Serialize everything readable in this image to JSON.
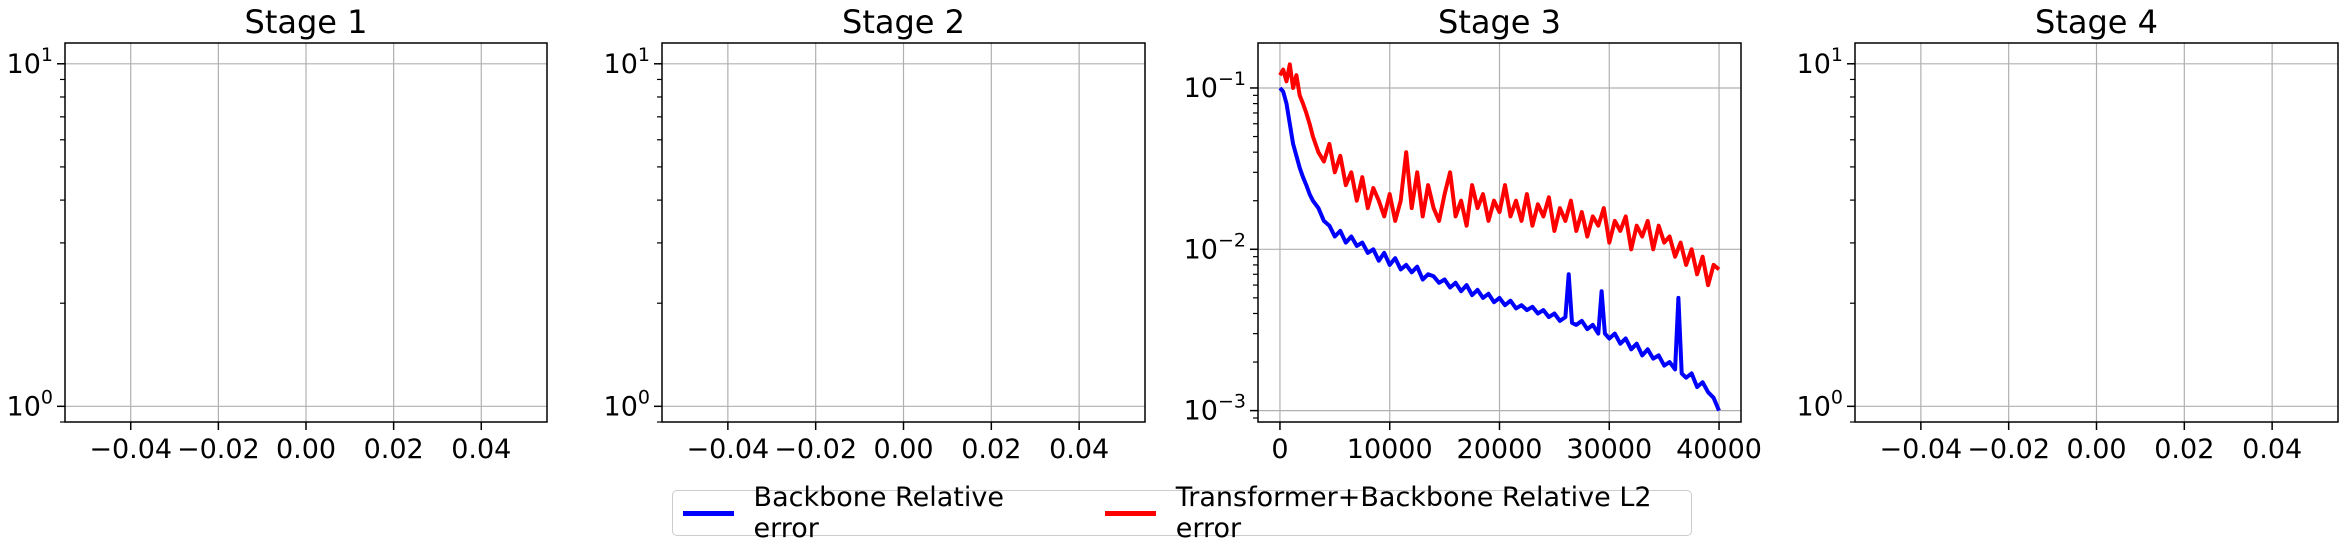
{
  "chart_data": [
    {
      "type": "line",
      "title": "Stage 1",
      "xlim": [
        -0.055,
        0.055
      ],
      "xticks": [
        "−0.04",
        "−0.02",
        "0.00",
        "0.02",
        "0.04"
      ],
      "xtick_values": [
        -0.04,
        -0.02,
        0.0,
        0.02,
        0.04
      ],
      "yscale": "log",
      "ylim": [
        0.9,
        11.5
      ],
      "yticks": [
        {
          "value": 1,
          "base": "10",
          "exp": "0"
        },
        {
          "value": 10,
          "base": "10",
          "exp": "1"
        }
      ],
      "grid": true,
      "series": []
    },
    {
      "type": "line",
      "title": "Stage 2",
      "xlim": [
        -0.055,
        0.055
      ],
      "xticks": [
        "−0.04",
        "−0.02",
        "0.00",
        "0.02",
        "0.04"
      ],
      "xtick_values": [
        -0.04,
        -0.02,
        0.0,
        0.02,
        0.04
      ],
      "yscale": "log",
      "ylim": [
        0.9,
        11.5
      ],
      "yticks": [
        {
          "value": 1,
          "base": "10",
          "exp": "0"
        },
        {
          "value": 10,
          "base": "10",
          "exp": "1"
        }
      ],
      "grid": true,
      "series": []
    },
    {
      "type": "line",
      "title": "Stage 3",
      "xlim": [
        -2000,
        42000
      ],
      "xticks": [
        "0",
        "10000",
        "20000",
        "30000",
        "40000"
      ],
      "xtick_values": [
        0,
        10000,
        20000,
        30000,
        40000
      ],
      "yscale": "log",
      "ylim": [
        0.00085,
        0.19
      ],
      "yticks": [
        {
          "value": 0.001,
          "base": "10",
          "exp": "−3"
        },
        {
          "value": 0.01,
          "base": "10",
          "exp": "−2"
        },
        {
          "value": 0.1,
          "base": "10",
          "exp": "−1"
        }
      ],
      "grid": true,
      "series": [
        {
          "name": "Backbone Relative error",
          "color": "#0000ff",
          "x": [
            0,
            300,
            600,
            900,
            1200,
            1500,
            1800,
            2100,
            2400,
            2700,
            3000,
            3500,
            4000,
            4500,
            5000,
            5500,
            6000,
            6500,
            7000,
            7500,
            8000,
            8500,
            9000,
            9500,
            10000,
            10500,
            11000,
            11500,
            12000,
            12500,
            13000,
            13500,
            14000,
            14500,
            15000,
            15500,
            16000,
            16500,
            17000,
            17500,
            18000,
            18500,
            19000,
            19500,
            20000,
            20500,
            21000,
            21500,
            22000,
            22500,
            23000,
            23500,
            24000,
            24500,
            25000,
            25500,
            26000,
            26300,
            26600,
            27000,
            27500,
            28000,
            28500,
            29000,
            29300,
            29600,
            30000,
            30500,
            31000,
            31500,
            32000,
            32500,
            33000,
            33500,
            34000,
            34500,
            35000,
            35500,
            36000,
            36300,
            36600,
            37000,
            37500,
            38000,
            38500,
            39000,
            39500,
            40000
          ],
          "y": [
            0.1,
            0.095,
            0.08,
            0.06,
            0.045,
            0.038,
            0.032,
            0.028,
            0.025,
            0.022,
            0.02,
            0.018,
            0.015,
            0.014,
            0.012,
            0.013,
            0.011,
            0.012,
            0.0105,
            0.011,
            0.0095,
            0.01,
            0.0085,
            0.0095,
            0.008,
            0.0088,
            0.0075,
            0.008,
            0.0072,
            0.0078,
            0.0065,
            0.007,
            0.0068,
            0.0062,
            0.0065,
            0.0058,
            0.0062,
            0.0055,
            0.006,
            0.0052,
            0.0056,
            0.005,
            0.0053,
            0.0047,
            0.005,
            0.0045,
            0.0048,
            0.0043,
            0.0045,
            0.0042,
            0.0044,
            0.004,
            0.0042,
            0.0038,
            0.004,
            0.0036,
            0.0038,
            0.007,
            0.0035,
            0.0034,
            0.0036,
            0.0032,
            0.0034,
            0.003,
            0.0055,
            0.003,
            0.0028,
            0.003,
            0.0026,
            0.0028,
            0.0024,
            0.0026,
            0.0022,
            0.0024,
            0.0021,
            0.0022,
            0.0019,
            0.002,
            0.0018,
            0.005,
            0.0017,
            0.0016,
            0.0017,
            0.0014,
            0.0015,
            0.0013,
            0.0012,
            0.001
          ]
        },
        {
          "name": "Transformer+Backbone Relative L2 error",
          "color": "#ff0000",
          "x": [
            0,
            300,
            600,
            900,
            1200,
            1500,
            1800,
            2100,
            2400,
            2700,
            3000,
            3500,
            4000,
            4500,
            5000,
            5500,
            6000,
            6500,
            7000,
            7500,
            8000,
            8500,
            9000,
            9500,
            10000,
            10500,
            11000,
            11500,
            12000,
            12500,
            13000,
            13500,
            14000,
            14500,
            15000,
            15500,
            16000,
            16500,
            17000,
            17500,
            18000,
            18500,
            19000,
            19500,
            20000,
            20500,
            21000,
            21500,
            22000,
            22500,
            23000,
            23500,
            24000,
            24500,
            25000,
            25500,
            26000,
            26500,
            27000,
            27500,
            28000,
            28500,
            29000,
            29500,
            30000,
            30500,
            31000,
            31500,
            32000,
            32500,
            33000,
            33500,
            34000,
            34500,
            35000,
            35500,
            36000,
            36500,
            37000,
            37500,
            38000,
            38500,
            39000,
            39500,
            40000
          ],
          "y": [
            0.12,
            0.13,
            0.11,
            0.14,
            0.1,
            0.12,
            0.09,
            0.08,
            0.07,
            0.06,
            0.05,
            0.04,
            0.035,
            0.045,
            0.03,
            0.038,
            0.025,
            0.03,
            0.02,
            0.028,
            0.018,
            0.024,
            0.02,
            0.016,
            0.022,
            0.015,
            0.02,
            0.04,
            0.018,
            0.03,
            0.016,
            0.025,
            0.018,
            0.015,
            0.022,
            0.03,
            0.016,
            0.02,
            0.014,
            0.025,
            0.018,
            0.022,
            0.015,
            0.02,
            0.017,
            0.025,
            0.016,
            0.02,
            0.015,
            0.022,
            0.014,
            0.019,
            0.016,
            0.021,
            0.013,
            0.018,
            0.015,
            0.02,
            0.013,
            0.017,
            0.012,
            0.016,
            0.014,
            0.018,
            0.011,
            0.015,
            0.013,
            0.016,
            0.01,
            0.014,
            0.012,
            0.015,
            0.01,
            0.014,
            0.011,
            0.012,
            0.009,
            0.011,
            0.008,
            0.01,
            0.007,
            0.009,
            0.006,
            0.008,
            0.0075
          ]
        }
      ]
    },
    {
      "type": "line",
      "title": "Stage 4",
      "xlim": [
        -0.055,
        0.055
      ],
      "xticks": [
        "−0.04",
        "−0.02",
        "0.00",
        "0.02",
        "0.04"
      ],
      "xtick_values": [
        -0.04,
        -0.02,
        0.0,
        0.02,
        0.04
      ],
      "yscale": "log",
      "ylim": [
        0.9,
        11.5
      ],
      "yticks": [
        {
          "value": 1,
          "base": "10",
          "exp": "0"
        },
        {
          "value": 10,
          "base": "10",
          "exp": "1"
        }
      ],
      "grid": true,
      "series": []
    }
  ],
  "legend": {
    "placement": "bottom-center",
    "items": [
      {
        "label": "Backbone Relative error",
        "color": "#0000ff"
      },
      {
        "label": "Transformer+Backbone Relative L2 error",
        "color": "#ff0000"
      }
    ]
  }
}
